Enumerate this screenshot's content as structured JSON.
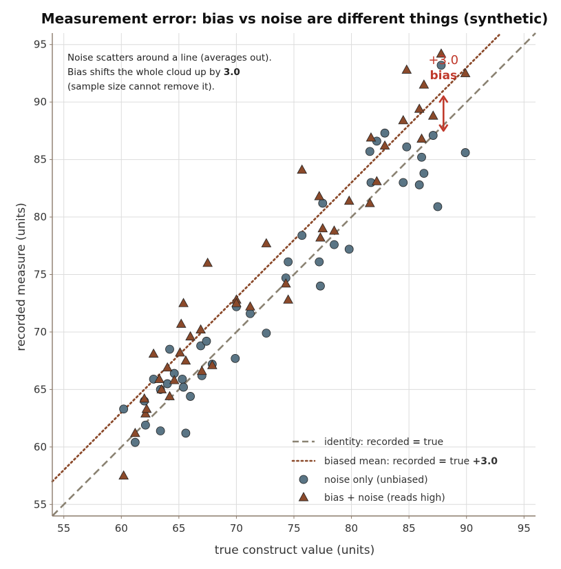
{
  "chart_data": {
    "type": "scatter",
    "title": "Measurement error: bias vs noise are different things (synthetic)",
    "xlabel": "true construct value (units)",
    "ylabel": "recorded measure (units)",
    "xlim": [
      54,
      96
    ],
    "ylim": [
      54,
      96
    ],
    "xticks": [
      55,
      60,
      65,
      70,
      75,
      80,
      85,
      90,
      95
    ],
    "yticks": [
      55,
      60,
      65,
      70,
      75,
      80,
      85,
      90,
      95
    ],
    "grid": true,
    "legend_position": "bottom-right",
    "note_lines": [
      "Noise scatters around a line (averages out).",
      "Bias shifts the whole cloud up by",
      "3.0",
      "(sample size cannot remove it)."
    ],
    "bias_annotation": {
      "value": "+3.0",
      "label": "bias",
      "x": 88,
      "y_from": 87.5,
      "y_to": 90.5
    },
    "lines": [
      {
        "name": "identity: recorded = true",
        "legend": [
          "identity: recorded ",
          "=",
          " true"
        ],
        "offset": 0,
        "color": "#8a8272",
        "style": "dashed"
      },
      {
        "name": "biased mean: recorded = true +3.0",
        "legend": [
          "biased mean: recorded ",
          "=",
          " true ",
          "+3.0"
        ],
        "offset": 3.0,
        "color": "#8b4a2b",
        "style": "dotted"
      }
    ],
    "series": [
      {
        "name": "noise only (unbiased)",
        "marker": "circle",
        "color": "#5a7585",
        "points": [
          [
            60.2,
            63.3
          ],
          [
            61.2,
            60.4
          ],
          [
            62.0,
            64.0
          ],
          [
            62.1,
            61.9
          ],
          [
            62.8,
            65.9
          ],
          [
            63.4,
            65.0
          ],
          [
            63.4,
            61.4
          ],
          [
            64.0,
            65.5
          ],
          [
            64.2,
            68.5
          ],
          [
            64.6,
            66.4
          ],
          [
            65.3,
            65.9
          ],
          [
            65.4,
            65.2
          ],
          [
            65.6,
            61.2
          ],
          [
            66.0,
            64.4
          ],
          [
            66.9,
            68.8
          ],
          [
            67.0,
            66.2
          ],
          [
            67.4,
            69.2
          ],
          [
            67.9,
            67.2
          ],
          [
            69.9,
            67.7
          ],
          [
            70.0,
            72.2
          ],
          [
            71.2,
            71.6
          ],
          [
            72.6,
            69.9
          ],
          [
            74.3,
            74.7
          ],
          [
            74.5,
            76.1
          ],
          [
            75.7,
            78.4
          ],
          [
            77.2,
            76.1
          ],
          [
            77.3,
            74.0
          ],
          [
            77.5,
            81.2
          ],
          [
            78.5,
            77.6
          ],
          [
            79.8,
            77.2
          ],
          [
            81.6,
            85.7
          ],
          [
            81.7,
            83.0
          ],
          [
            82.2,
            86.6
          ],
          [
            82.9,
            87.3
          ],
          [
            84.5,
            83.0
          ],
          [
            84.8,
            86.1
          ],
          [
            85.9,
            82.8
          ],
          [
            86.1,
            85.2
          ],
          [
            86.3,
            83.8
          ],
          [
            87.1,
            87.1
          ],
          [
            87.5,
            80.9
          ],
          [
            87.8,
            93.2
          ],
          [
            89.9,
            85.6
          ]
        ]
      },
      {
        "name": "bias + noise (reads high)",
        "marker": "triangle",
        "color": "#8b4a2b",
        "points": [
          [
            60.2,
            57.5
          ],
          [
            61.2,
            61.2
          ],
          [
            62.0,
            64.2
          ],
          [
            62.1,
            62.9
          ],
          [
            62.2,
            63.3
          ],
          [
            62.8,
            68.1
          ],
          [
            63.3,
            65.9
          ],
          [
            63.5,
            65.0
          ],
          [
            64.0,
            66.9
          ],
          [
            64.2,
            64.4
          ],
          [
            64.6,
            65.8
          ],
          [
            65.1,
            68.2
          ],
          [
            65.2,
            70.7
          ],
          [
            65.4,
            72.5
          ],
          [
            65.6,
            67.5
          ],
          [
            66.0,
            69.6
          ],
          [
            66.9,
            70.2
          ],
          [
            67.0,
            66.6
          ],
          [
            67.5,
            76.0
          ],
          [
            67.9,
            67.1
          ],
          [
            70.0,
            72.8
          ],
          [
            70.0,
            72.5
          ],
          [
            71.2,
            72.2
          ],
          [
            72.6,
            77.7
          ],
          [
            74.3,
            74.2
          ],
          [
            74.5,
            72.8
          ],
          [
            75.7,
            84.1
          ],
          [
            77.2,
            81.8
          ],
          [
            77.3,
            78.2
          ],
          [
            77.5,
            79.0
          ],
          [
            78.5,
            78.8
          ],
          [
            79.8,
            81.4
          ],
          [
            81.6,
            81.2
          ],
          [
            81.7,
            86.9
          ],
          [
            82.2,
            83.1
          ],
          [
            82.9,
            86.2
          ],
          [
            84.5,
            88.4
          ],
          [
            84.8,
            92.8
          ],
          [
            85.9,
            89.4
          ],
          [
            86.1,
            86.8
          ],
          [
            86.3,
            91.5
          ],
          [
            87.1,
            88.8
          ],
          [
            87.8,
            94.2
          ],
          [
            89.9,
            92.5
          ]
        ]
      }
    ]
  }
}
